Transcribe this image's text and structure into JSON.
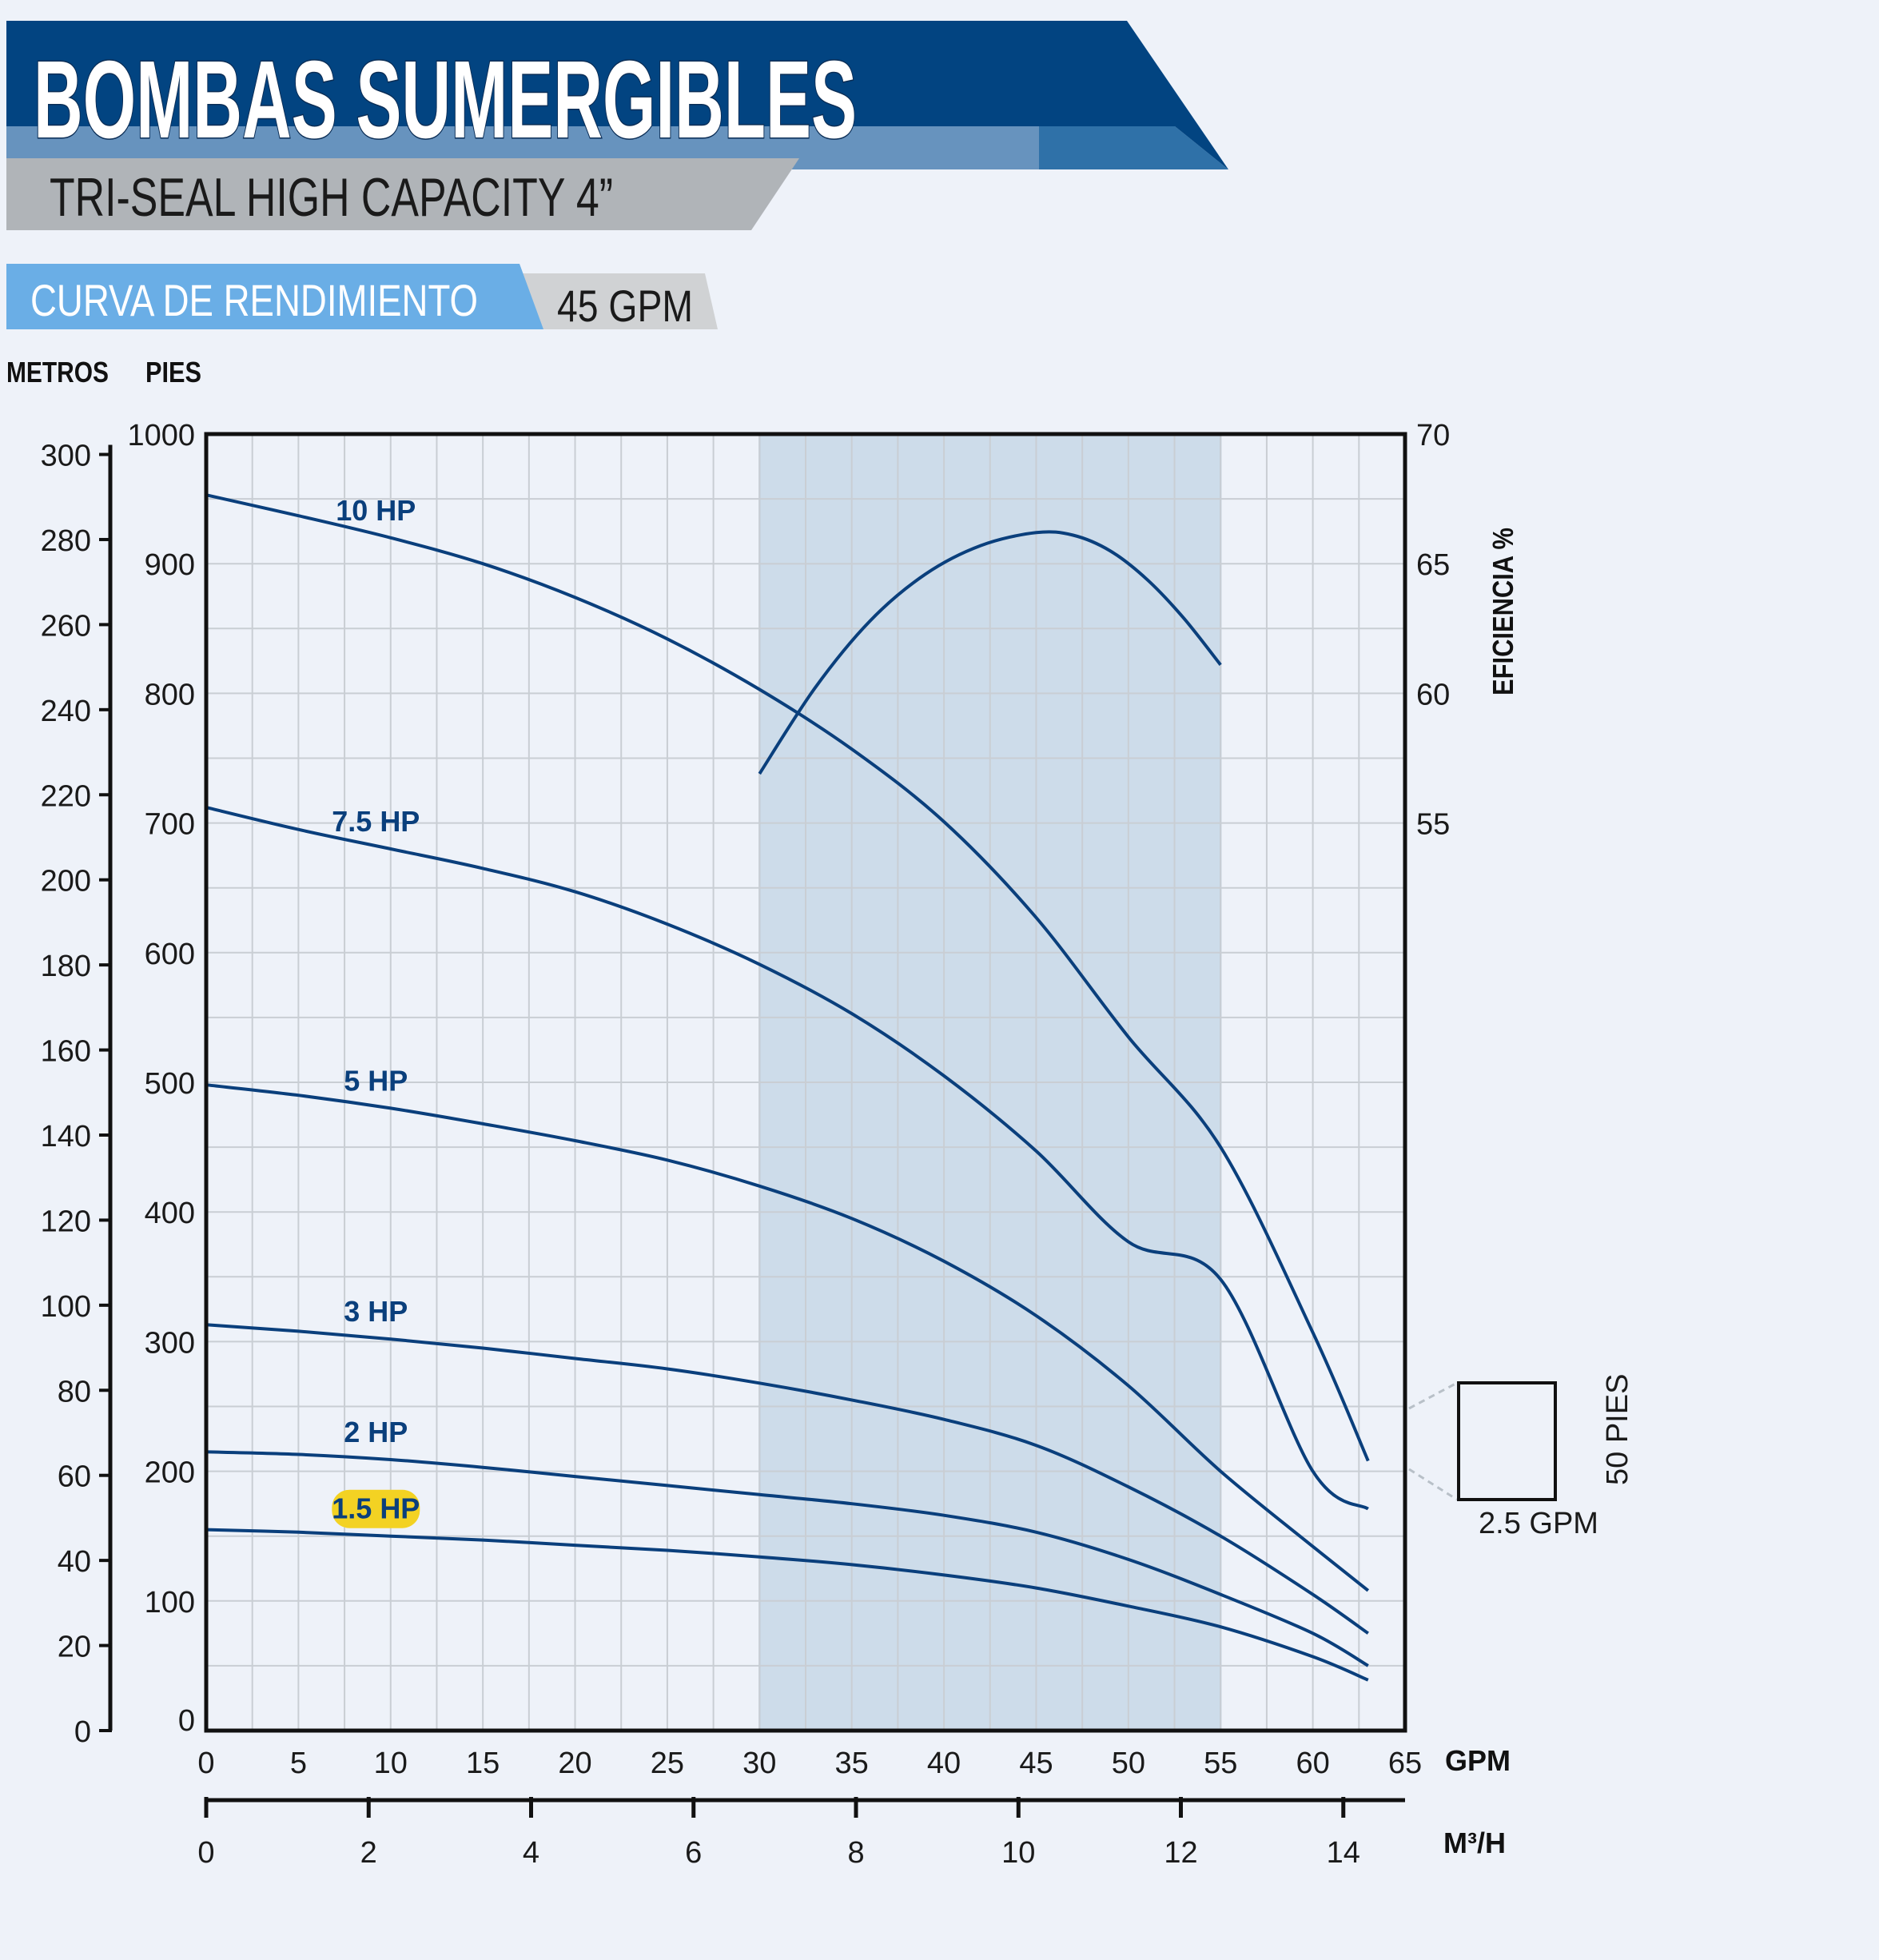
{
  "header": {
    "title": "BOMBAS SUMERGIBLES",
    "subtitle": "TRI-SEAL HIGH CAPACITY 4”",
    "section_label": "CURVA DE RENDIMIENTO",
    "model_label": "45 GPM"
  },
  "colors": {
    "header_blue": "#024481",
    "header_mid_blue": "#6793be",
    "header_dark_mid": "#2f71a8",
    "subtitle_gray": "#b0b4b8",
    "section_blue": "#6aaee6",
    "model_gray": "#d0d2d4",
    "band": "#cddcea",
    "curve": "#0a3f7c",
    "highlight": "#f3d223"
  },
  "chart_data": {
    "type": "line",
    "x_label": "GPM",
    "x_ticks": [
      "0",
      "5",
      "10",
      "15",
      "20",
      "25",
      "30",
      "35",
      "40",
      "45",
      "50",
      "55",
      "60",
      "65"
    ],
    "xlim": [
      0,
      65
    ],
    "x2_label": "M³/H",
    "x2_ticks": [
      "0",
      "2",
      "4",
      "6",
      "8",
      "10",
      "12",
      "14"
    ],
    "x2lim": [
      0,
      14.76
    ],
    "y_label": "PIES",
    "y_ticks": [
      "0",
      "100",
      "200",
      "300",
      "400",
      "500",
      "600",
      "700",
      "800",
      "900",
      "1000"
    ],
    "ylim": [
      0,
      1000
    ],
    "y_left_label": "METROS",
    "y_left_ticks": [
      "0",
      "20",
      "40",
      "60",
      "80",
      "100",
      "120",
      "140",
      "160",
      "180",
      "200",
      "220",
      "240",
      "260",
      "280",
      "300"
    ],
    "y_left_lim": [
      0,
      304.8
    ],
    "y_right_label": "EFICIENCIA %",
    "y_right_ticks": [
      "55",
      "60",
      "65",
      "70"
    ],
    "y_right_lim": [
      20,
      70
    ],
    "grid": true,
    "recommended_range": [
      30,
      55
    ],
    "series": [
      {
        "name": "10 HP",
        "x": [
          0,
          5,
          10,
          15,
          20,
          25,
          30,
          35,
          40,
          45,
          50,
          55,
          60,
          63
        ],
        "y": [
          953,
          937,
          920,
          900,
          874,
          842,
          803,
          757,
          701,
          627,
          535,
          450,
          307,
          208
        ]
      },
      {
        "name": "7.5 HP",
        "x": [
          0,
          5,
          10,
          15,
          20,
          25,
          30,
          35,
          40,
          45,
          50,
          55,
          60,
          63
        ],
        "y": [
          712,
          695,
          680,
          665,
          647,
          622,
          591,
          553,
          505,
          447,
          377,
          348,
          200,
          171
        ]
      },
      {
        "name": "5 HP",
        "x": [
          0,
          5,
          10,
          15,
          20,
          25,
          30,
          35,
          40,
          45,
          50,
          55,
          60,
          63
        ],
        "y": [
          498,
          490,
          480,
          468,
          455,
          440,
          420,
          395,
          362,
          320,
          266,
          200,
          142,
          108
        ]
      },
      {
        "name": "3 HP",
        "x": [
          0,
          5,
          10,
          15,
          20,
          25,
          30,
          35,
          40,
          45,
          50,
          55,
          60,
          63
        ],
        "y": [
          313,
          308,
          302,
          295,
          287,
          279,
          268,
          255,
          240,
          220,
          188,
          150,
          105,
          75
        ]
      },
      {
        "name": "2 HP",
        "x": [
          0,
          5,
          10,
          15,
          20,
          25,
          30,
          35,
          40,
          45,
          50,
          55,
          60,
          63
        ],
        "y": [
          215,
          213,
          209,
          203,
          196,
          189,
          182,
          175,
          166,
          153,
          132,
          105,
          75,
          50
        ]
      },
      {
        "name": "1.5 HP",
        "x": [
          0,
          5,
          10,
          15,
          20,
          25,
          30,
          35,
          40,
          45,
          50,
          55,
          60,
          63
        ],
        "y": [
          155,
          153,
          150,
          147,
          143,
          139,
          134,
          128,
          120,
          110,
          96,
          80,
          57,
          39
        ]
      }
    ],
    "efficiency": {
      "x": [
        30,
        33,
        36,
        39,
        42,
        45,
        47,
        49,
        51,
        53,
        55
      ],
      "y": [
        56.9,
        60.2,
        62.8,
        64.6,
        65.7,
        66.2,
        66.1,
        65.5,
        64.4,
        62.9,
        61.1
      ]
    },
    "scale_box": {
      "width_label": "2.5 GPM",
      "height_label": "50 PIES"
    }
  }
}
